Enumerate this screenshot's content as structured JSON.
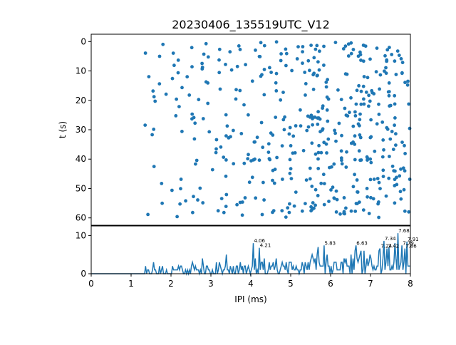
{
  "chart_data": [
    {
      "type": "scatter",
      "title": "20230406_135519UTC_V12",
      "xlabel": "",
      "ylabel": "t (s)",
      "xlim": [
        0,
        8
      ],
      "ylim": [
        62.5,
        -2.5
      ],
      "y_inverted": true,
      "yticks": [
        "0",
        "10",
        "20",
        "30",
        "40",
        "50",
        "60"
      ],
      "grid": false,
      "color": "#1f77b4",
      "point_count_estimate": 460,
      "points_visible_description": "dense cloud of inter-pulse intervals, sparse below 2.5 ms and dense from 3 to 8 ms, t spanning 0 to 60 s"
    },
    {
      "type": "line",
      "title": "",
      "xlabel": "IPI (ms)",
      "ylabel": "",
      "xlim": [
        0,
        8
      ],
      "ylim": [
        0,
        12.5
      ],
      "xticks": [
        "0",
        "1",
        "2",
        "3",
        "4",
        "5",
        "6",
        "7",
        "8"
      ],
      "yticks": [
        "0",
        "10"
      ],
      "grid": false,
      "color": "#1f77b4",
      "peak_labels": [
        {
          "x": 4.06,
          "y": 8.0,
          "text": "4.06"
        },
        {
          "x": 4.21,
          "y": 6.8,
          "text": "4.21"
        },
        {
          "x": 5.83,
          "y": 7.4,
          "text": "5.83"
        },
        {
          "x": 6.63,
          "y": 7.4,
          "text": "6.63"
        },
        {
          "x": 7.24,
          "y": 6.6,
          "text": "7.24"
        },
        {
          "x": 7.34,
          "y": 8.6,
          "text": "7.34"
        },
        {
          "x": 7.42,
          "y": 6.6,
          "text": "7.42"
        },
        {
          "x": 7.68,
          "y": 10.6,
          "text": "7.68"
        },
        {
          "x": 7.79,
          "y": 7.4,
          "text": "7.79"
        },
        {
          "x": 7.86,
          "y": 6.6,
          "text": "7.86"
        },
        {
          "x": 7.91,
          "y": 8.4,
          "text": "7.91"
        }
      ]
    }
  ]
}
